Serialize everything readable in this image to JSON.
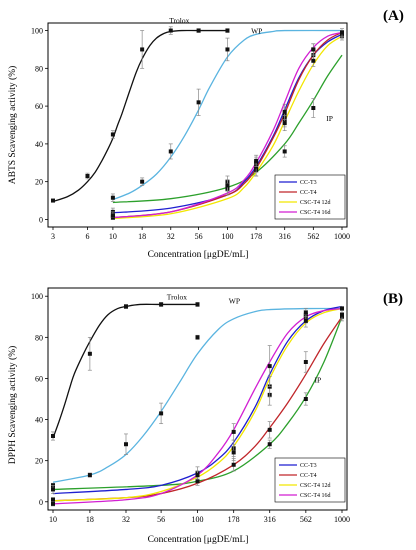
{
  "colors": {
    "Trolox": "#111111",
    "WP": "#5ab4e0",
    "IP": "#2ca02c",
    "CC-T3": "#1f1fd0",
    "CC-T4": "#c0262a",
    "CSC-T4 12d": "#f2e600",
    "CSC-T4 16d": "#d21fd2",
    "points": "#111111",
    "errorbars": "#888888"
  },
  "chart_data": [
    {
      "type": "line",
      "panel_label": "(A)",
      "xlabel": "Concentration [μgDE/mL]",
      "ylabel": "ABTS Scavenging activity (%)",
      "x_scale": "log",
      "xlim": [
        3,
        1000
      ],
      "ylim": [
        0,
        100
      ],
      "x_ticks": [
        3,
        6,
        10,
        18,
        32,
        56,
        100,
        178,
        316,
        562,
        1000
      ],
      "x_tick_labels": [
        "3",
        "6",
        "10",
        "18",
        "32",
        "56",
        "100",
        "178",
        "316",
        "562",
        "1000"
      ],
      "y_ticks": [
        0,
        20,
        40,
        60,
        80,
        100
      ],
      "legend_placement": "bottom-right",
      "legend": [
        "CC-T3",
        "CC-T4",
        "CSC-T4 12d",
        "CSC-T4 16d"
      ],
      "annotations": [
        {
          "text": "Trolox",
          "x": 38,
          "y": 104
        },
        {
          "text": "WP",
          "x": 180,
          "y": 98.5
        },
        {
          "text": "IP",
          "x": 780,
          "y": 52
        }
      ],
      "series": [
        {
          "name": "Trolox",
          "x": [
            3,
            6,
            10,
            18,
            32,
            56,
            100
          ],
          "y": [
            10,
            23,
            45,
            90,
            100,
            100,
            100
          ],
          "err": [
            0,
            1.5,
            2,
            10,
            2,
            1,
            1
          ],
          "points": true,
          "curve": [
            3,
            4,
            5,
            6,
            7,
            8,
            9,
            10,
            11,
            12,
            14,
            16,
            18,
            21,
            24,
            28,
            32,
            40,
            56,
            100
          ],
          "curve_y": [
            9.5,
            12,
            15.5,
            20,
            25,
            31,
            37,
            43,
            50,
            56,
            68,
            78,
            85,
            92,
            96,
            98.5,
            99.5,
            100,
            100,
            100
          ]
        },
        {
          "name": "WP",
          "x": [
            10,
            18,
            32,
            56,
            100
          ],
          "y": [
            11.5,
            20,
            36,
            62,
            90
          ],
          "err": [
            2,
            2,
            4,
            7,
            6
          ],
          "points": true,
          "curve": [
            10,
            14,
            18,
            24,
            32,
            42,
            56,
            70,
            100,
            140,
            178,
            250,
            316,
            1000
          ],
          "curve_y": [
            10.5,
            14,
            18,
            24,
            33,
            44,
            58,
            70,
            86,
            95,
            98,
            99.5,
            100,
            100
          ]
        },
        {
          "name": "IP",
          "x": [
            178,
            316,
            562
          ],
          "y": [
            27,
            36,
            59
          ],
          "err": [
            4,
            3,
            5
          ],
          "points": true,
          "curve": [
            10,
            32,
            100,
            178,
            316,
            420,
            562,
            750,
            1000
          ],
          "curve_y": [
            9,
            11,
            17,
            25,
            40,
            51,
            63,
            76,
            87
          ]
        },
        {
          "name": "CC-T3",
          "x": [
            10,
            100,
            178,
            316,
            562,
            1000
          ],
          "y": [
            4,
            20,
            30,
            55,
            90,
            97
          ],
          "err": [
            2,
            3,
            3,
            4,
            3,
            2
          ],
          "points": true,
          "curve": [
            10,
            32,
            100,
            140,
            178,
            250,
            316,
            420,
            562,
            750,
            1000
          ],
          "curve_y": [
            3.5,
            6,
            13,
            20,
            28,
            44,
            58,
            75,
            87,
            94,
            98
          ]
        },
        {
          "name": "CC-T4",
          "x": [
            10,
            100,
            178,
            316,
            562,
            1000
          ],
          "y": [
            2,
            16,
            26,
            53,
            87,
            98
          ],
          "err": [
            2,
            3,
            3,
            4,
            3,
            2
          ],
          "points": true,
          "curve": [
            10,
            32,
            100,
            140,
            178,
            250,
            316,
            420,
            562,
            750,
            1000
          ],
          "curve_y": [
            1,
            4,
            13,
            19,
            27,
            43,
            56,
            74,
            87,
            95,
            99
          ]
        },
        {
          "name": "CSC-T4 12d",
          "x": [
            10,
            100,
            178,
            316,
            562,
            1000
          ],
          "y": [
            1,
            18,
            28,
            51,
            84,
            98
          ],
          "err": [
            1,
            3,
            3,
            4,
            3,
            2
          ],
          "points": true,
          "curve": [
            10,
            32,
            100,
            140,
            178,
            250,
            316,
            420,
            562,
            750,
            1000
          ],
          "curve_y": [
            0.5,
            3,
            11,
            17,
            25,
            39,
            52,
            68,
            82,
            92,
            97
          ]
        },
        {
          "name": "CSC-T4 16d",
          "x": [
            10,
            100,
            178,
            316,
            562,
            1000
          ],
          "y": [
            2,
            18,
            31,
            57,
            90,
            99
          ],
          "err": [
            1,
            3,
            3,
            4,
            3,
            2
          ],
          "points": true,
          "curve": [
            10,
            32,
            100,
            140,
            178,
            250,
            316,
            420,
            562,
            750,
            1000
          ],
          "curve_y": [
            1,
            4,
            14,
            21,
            30,
            47,
            62,
            80,
            91,
            97,
            99
          ]
        }
      ]
    },
    {
      "type": "line",
      "panel_label": "(B)",
      "xlabel": "Concentration [μgDE/mL]",
      "ylabel": "DPPH Scavenging activity (%)",
      "x_scale": "log",
      "xlim": [
        10,
        1000
      ],
      "ylim": [
        0,
        100
      ],
      "x_ticks": [
        10,
        18,
        32,
        56,
        100,
        178,
        316,
        562,
        1000
      ],
      "x_tick_labels": [
        "10",
        "18",
        "32",
        "56",
        "100",
        "178",
        "316",
        "562",
        "1000"
      ],
      "y_ticks": [
        0,
        20,
        40,
        60,
        80,
        100
      ],
      "legend_placement": "bottom-right",
      "legend": [
        "CC-T3",
        "CC-T4",
        "CSC-T4 12d",
        "CSC-T4 16d"
      ],
      "annotations": [
        {
          "text": "Trolox",
          "x": 72,
          "y": 98.5
        },
        {
          "text": "WP",
          "x": 180,
          "y": 96.5
        },
        {
          "text": "IP",
          "x": 680,
          "y": 58
        }
      ],
      "series": [
        {
          "name": "Trolox",
          "x": [
            10,
            18,
            32,
            56,
            100
          ],
          "y": [
            32,
            72,
            95,
            96,
            96
          ],
          "err": [
            2,
            8,
            1,
            1,
            1
          ],
          "points": true,
          "curve": [
            10,
            11,
            12,
            13,
            14,
            16,
            18,
            21,
            24,
            28,
            32,
            40,
            56,
            100
          ],
          "curve_y": [
            31,
            39,
            47,
            55,
            62,
            71,
            78,
            86,
            91,
            94,
            95,
            96,
            96,
            96
          ]
        },
        {
          "name": "WP",
          "x": [
            10,
            18,
            32,
            56,
            100,
            562,
            1000
          ],
          "y": [
            8,
            13,
            28,
            43,
            80,
            91,
            94
          ],
          "err": [
            1,
            1,
            5,
            5,
            1,
            2,
            1
          ],
          "points": true,
          "curve": [
            10,
            18,
            24,
            32,
            42,
            56,
            75,
            100,
            140,
            178,
            250,
            316,
            562,
            1000
          ],
          "curve_y": [
            9.5,
            13,
            17,
            23,
            32,
            44,
            58,
            72,
            84,
            89,
            92.5,
            93.5,
            94,
            94
          ]
        },
        {
          "name": "IP",
          "x": [
            316,
            562,
            1000
          ],
          "y": [
            28,
            50,
            90
          ],
          "err": [
            2,
            3,
            2
          ],
          "points": true,
          "curve": [
            10,
            56,
            100,
            178,
            316,
            420,
            562,
            750,
            1000
          ],
          "curve_y": [
            6,
            8,
            10,
            15,
            28,
            38,
            51,
            68,
            90
          ]
        },
        {
          "name": "CC-T3",
          "x": [
            10,
            100,
            178,
            316,
            562
          ],
          "y": [
            6,
            14,
            26,
            52,
            90
          ],
          "err": [
            2,
            3,
            4,
            5,
            3
          ],
          "points": true,
          "curve": [
            10,
            32,
            56,
            100,
            140,
            178,
            250,
            316,
            420,
            562,
            750,
            1000
          ],
          "curve_y": [
            4,
            6,
            8,
            14,
            21,
            29,
            46,
            62,
            78,
            88,
            93,
            95
          ]
        },
        {
          "name": "CC-T4",
          "x": [
            10,
            100,
            178,
            316,
            562,
            1000
          ],
          "y": [
            1,
            10,
            18,
            35,
            68,
            91
          ],
          "err": [
            1,
            2,
            3,
            4,
            5,
            2
          ],
          "points": true,
          "curve": [
            10,
            32,
            56,
            100,
            178,
            250,
            316,
            420,
            562,
            750,
            1000
          ],
          "curve_y": [
            0.5,
            2,
            4,
            9,
            18,
            27,
            36,
            48,
            62,
            77,
            90
          ]
        },
        {
          "name": "CSC-T4 12d",
          "x": [
            10,
            100,
            178,
            316,
            562
          ],
          "y": [
            1,
            13,
            24,
            56,
            88
          ],
          "err": [
            1,
            2,
            4,
            5,
            3
          ],
          "points": true,
          "curve": [
            10,
            32,
            56,
            100,
            140,
            178,
            250,
            316,
            420,
            562,
            750,
            1000
          ],
          "curve_y": [
            0.5,
            2,
            5,
            12,
            19,
            27,
            44,
            60,
            76,
            87,
            92,
            94
          ]
        },
        {
          "name": "CSC-T4 16d",
          "x": [
            10,
            100,
            178,
            316,
            562
          ],
          "y": [
            -1,
            13,
            34,
            66,
            92
          ],
          "err": [
            1,
            2,
            4,
            10,
            2
          ],
          "points": true,
          "curve": [
            10,
            32,
            56,
            100,
            140,
            178,
            250,
            316,
            420,
            562,
            750,
            1000
          ],
          "curve_y": [
            -1,
            1,
            4,
            13,
            24,
            35,
            55,
            68,
            82,
            90,
            93,
            94
          ]
        }
      ]
    }
  ]
}
